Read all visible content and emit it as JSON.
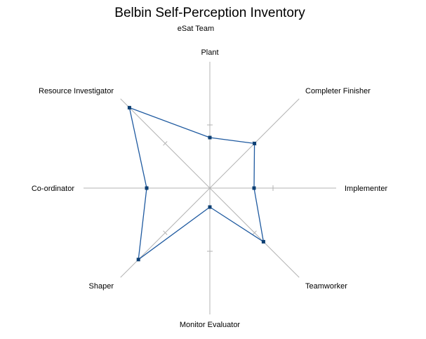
{
  "chart_data": {
    "type": "radar",
    "title": "Belbin Self-Perception Inventory",
    "subtitle": "eSat Team",
    "categories": [
      "Plant",
      "Completer Finisher",
      "Implementer",
      "Teamworker",
      "Monitor Evaluator",
      "Shaper",
      "Co-ordinator",
      "Resource Investigator"
    ],
    "series": [
      {
        "values": [
          8,
          10,
          7,
          12,
          3,
          16,
          10,
          18
        ]
      }
    ],
    "range": [
      0,
      20
    ],
    "ticks": [
      0,
      10,
      20
    ],
    "grid": false,
    "colors": {
      "series": "#1f5aa0",
      "marker": "#0d3f73",
      "axis": "#b3b3b3",
      "background": "#ffffff"
    }
  }
}
